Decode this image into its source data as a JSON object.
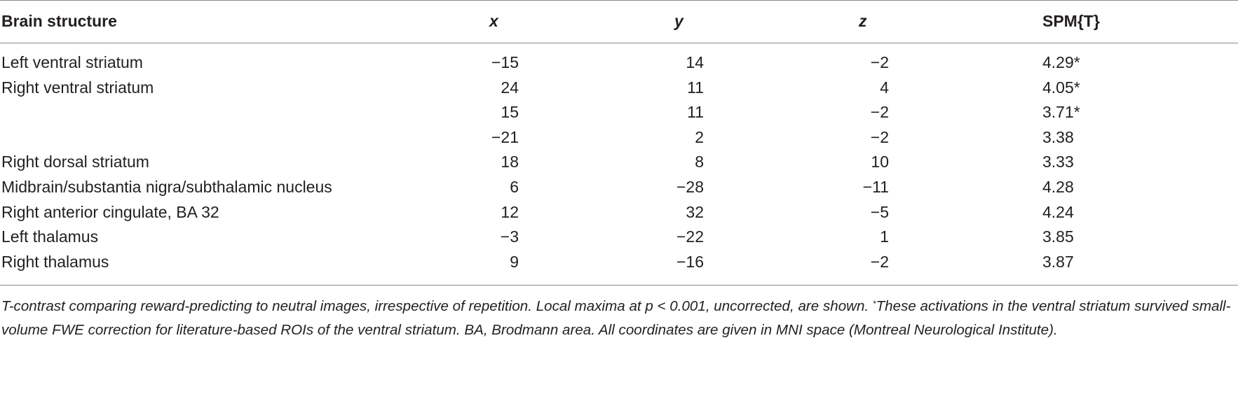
{
  "table": {
    "headers": {
      "structure": "Brain structure",
      "x": "x",
      "y": "y",
      "z": "z",
      "spm": "SPM{T}"
    },
    "rows": [
      {
        "structure": "Left ventral striatum",
        "x": "−15",
        "y": "14",
        "z": "−2",
        "spm": "4.29*"
      },
      {
        "structure": "Right ventral striatum",
        "x": "24",
        "y": "11",
        "z": "4",
        "spm": "4.05*"
      },
      {
        "structure": "",
        "x": "15",
        "y": "11",
        "z": "−2",
        "spm": "3.71*"
      },
      {
        "structure": "",
        "x": "−21",
        "y": "2",
        "z": "−2",
        "spm": "3.38"
      },
      {
        "structure": "Right dorsal striatum",
        "x": "18",
        "y": "8",
        "z": "10",
        "spm": "3.33"
      },
      {
        "structure": "Midbrain/substantia nigra/subthalamic nucleus",
        "x": "6",
        "y": "−28",
        "z": "−11",
        "spm": "4.28"
      },
      {
        "structure": "Right anterior cingulate, BA 32",
        "x": "12",
        "y": "32",
        "z": "−5",
        "spm": "4.24"
      },
      {
        "structure": "Left thalamus",
        "x": "−3",
        "y": "−22",
        "z": "1",
        "spm": "3.85"
      },
      {
        "structure": "Right thalamus",
        "x": "9",
        "y": "−16",
        "z": "−2",
        "spm": "3.87"
      }
    ]
  },
  "caption": {
    "part1": "T-contrast comparing reward-predicting to neutral images, irrespective of repetition. Local maxima at p < 0.001, uncorrected, are shown. ",
    "marker": "*",
    "part2": "These activations in the ventral striatum survived small-volume FWE correction for literature-based ROIs of the ventral striatum. BA, Brodmann area. All coordinates are given in MNI space (Montreal Neurological Institute)."
  }
}
